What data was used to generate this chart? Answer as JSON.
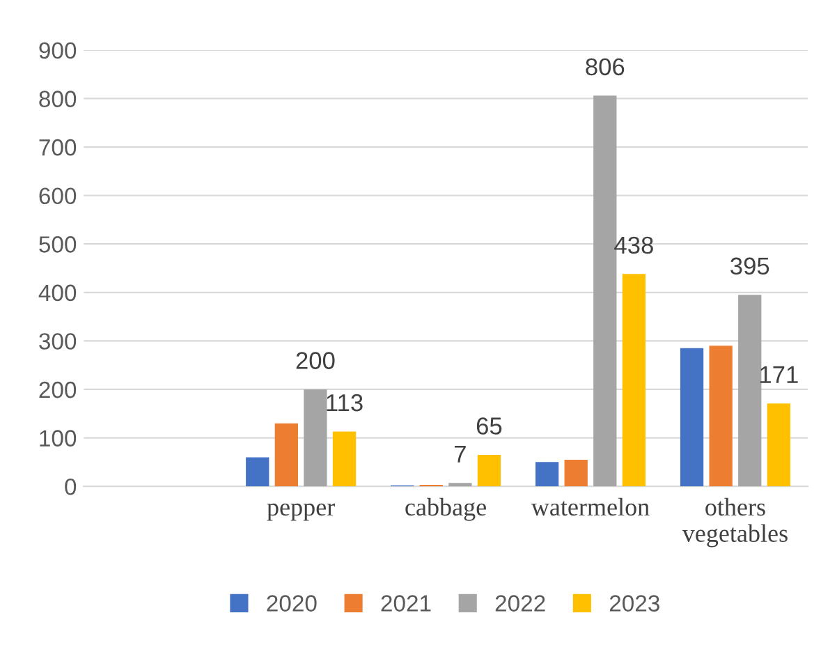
{
  "chart_data": {
    "type": "bar",
    "categories": [
      null,
      "pepper",
      "cabbage",
      "watermelon",
      "others\nvegetables"
    ],
    "series": [
      {
        "name": "2020",
        "color": "#4472c4",
        "values": [
          null,
          60,
          2,
          50,
          285
        ]
      },
      {
        "name": "2021",
        "color": "#ed7d31",
        "values": [
          null,
          130,
          3,
          55,
          290
        ]
      },
      {
        "name": "2022",
        "color": "#a5a5a5",
        "values": [
          null,
          200,
          7,
          806,
          395
        ],
        "value_labels": [
          null,
          "200",
          "7",
          "806",
          "395"
        ]
      },
      {
        "name": "2023",
        "color": "#ffc000",
        "values": [
          null,
          113,
          65,
          438,
          171
        ],
        "value_labels": [
          null,
          "113",
          "65",
          "438",
          "171"
        ]
      }
    ],
    "ylim": [
      0,
      900
    ],
    "yticks": [
      0,
      100,
      200,
      300,
      400,
      500,
      600,
      700,
      800,
      900
    ],
    "grid": "y",
    "legend": "bottom"
  }
}
